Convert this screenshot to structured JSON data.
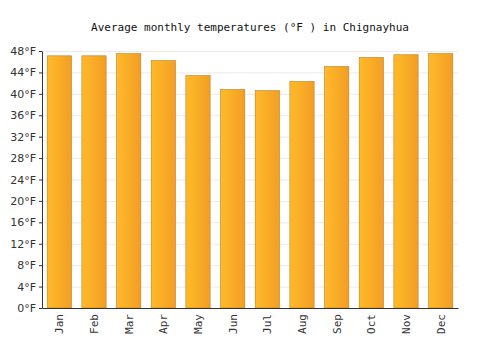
{
  "chart_data": {
    "type": "bar",
    "title": "Average monthly temperatures (°F ) in Chignayhua",
    "categories": [
      "Jan",
      "Feb",
      "Mar",
      "Apr",
      "May",
      "Jun",
      "Jul",
      "Aug",
      "Sep",
      "Oct",
      "Nov",
      "Dec"
    ],
    "values": [
      47.1,
      47.1,
      47.5,
      46.2,
      43.4,
      40.8,
      40.6,
      42.3,
      45.1,
      46.8,
      47.3,
      47.5
    ],
    "color": "#ffa726",
    "ylim": [
      0,
      48
    ],
    "yticks": [
      {
        "value": 0,
        "label": "0°F"
      },
      {
        "value": 4,
        "label": "4°F"
      },
      {
        "value": 8,
        "label": "8°F"
      },
      {
        "value": 12,
        "label": "12°F"
      },
      {
        "value": 16,
        "label": "16°F"
      },
      {
        "value": 20,
        "label": "20°F"
      },
      {
        "value": 24,
        "label": "24°F"
      },
      {
        "value": 28,
        "label": "28°F"
      },
      {
        "value": 32,
        "label": "32°F"
      },
      {
        "value": 36,
        "label": "36°F"
      },
      {
        "value": 40,
        "label": "40°F"
      },
      {
        "value": 44,
        "label": "44°F"
      },
      {
        "value": 48,
        "label": "48°F"
      }
    ],
    "grid": true
  }
}
